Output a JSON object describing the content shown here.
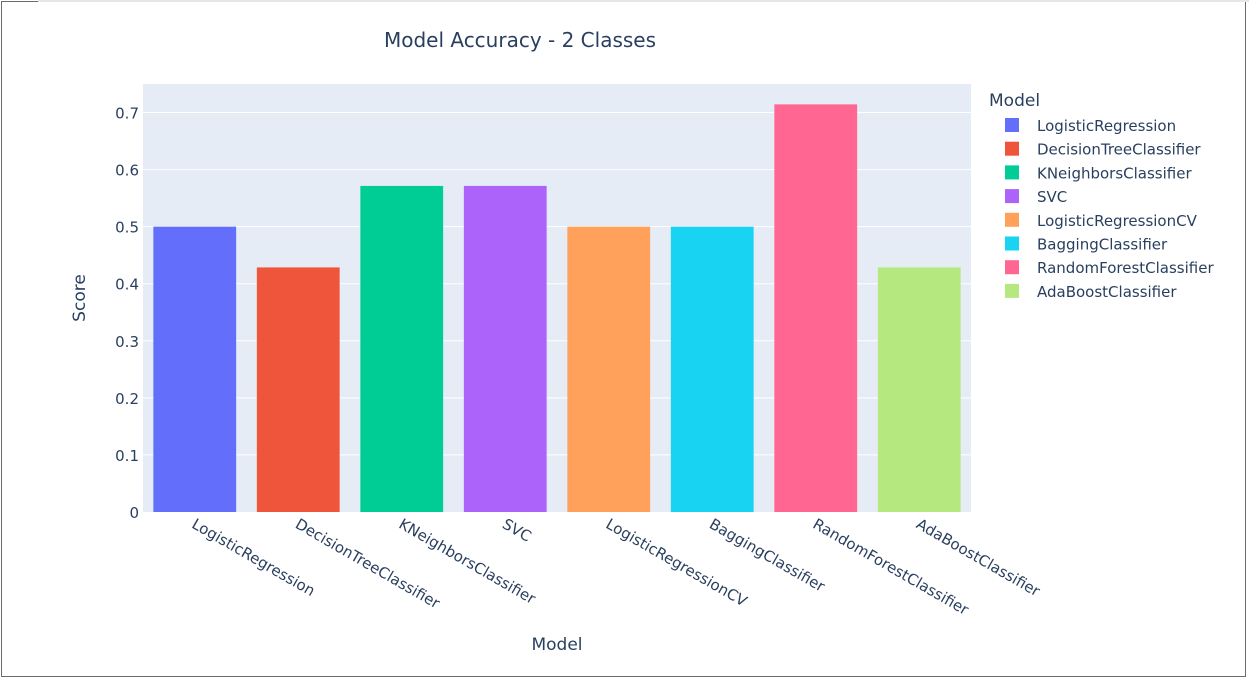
{
  "chart_data": {
    "type": "bar",
    "title": "Model Accuracy - 2 Classes",
    "xlabel": "Model",
    "ylabel": "Score",
    "ylim": [
      0,
      0.75
    ],
    "yticks": [
      0,
      0.1,
      0.2,
      0.3,
      0.4,
      0.5,
      0.6,
      0.7
    ],
    "ytick_labels": [
      "0",
      "0.1",
      "0.2",
      "0.3",
      "0.4",
      "0.5",
      "0.6",
      "0.7"
    ],
    "categories": [
      "LogisticRegression",
      "DecisionTreeClassifier",
      "KNeighborsClassifier",
      "SVC",
      "LogisticRegressionCV",
      "BaggingClassifier",
      "RandomForestClassifier",
      "AdaBoostClassifier"
    ],
    "values": [
      0.5,
      0.4286,
      0.5714,
      0.5714,
      0.5,
      0.5,
      0.7143,
      0.4286
    ],
    "colors": [
      "#636efa",
      "#ef553b",
      "#00cc96",
      "#ab63fa",
      "#ffa15a",
      "#19d3f3",
      "#ff6692",
      "#b6e880"
    ],
    "legend": {
      "title": "Model",
      "placement": "right",
      "entries": [
        "LogisticRegression",
        "DecisionTreeClassifier",
        "KNeighborsClassifier",
        "SVC",
        "LogisticRegressionCV",
        "BaggingClassifier",
        "RandomForestClassifier",
        "AdaBoostClassifier"
      ]
    },
    "grid": true,
    "plot_background": "#e5ecf6"
  }
}
